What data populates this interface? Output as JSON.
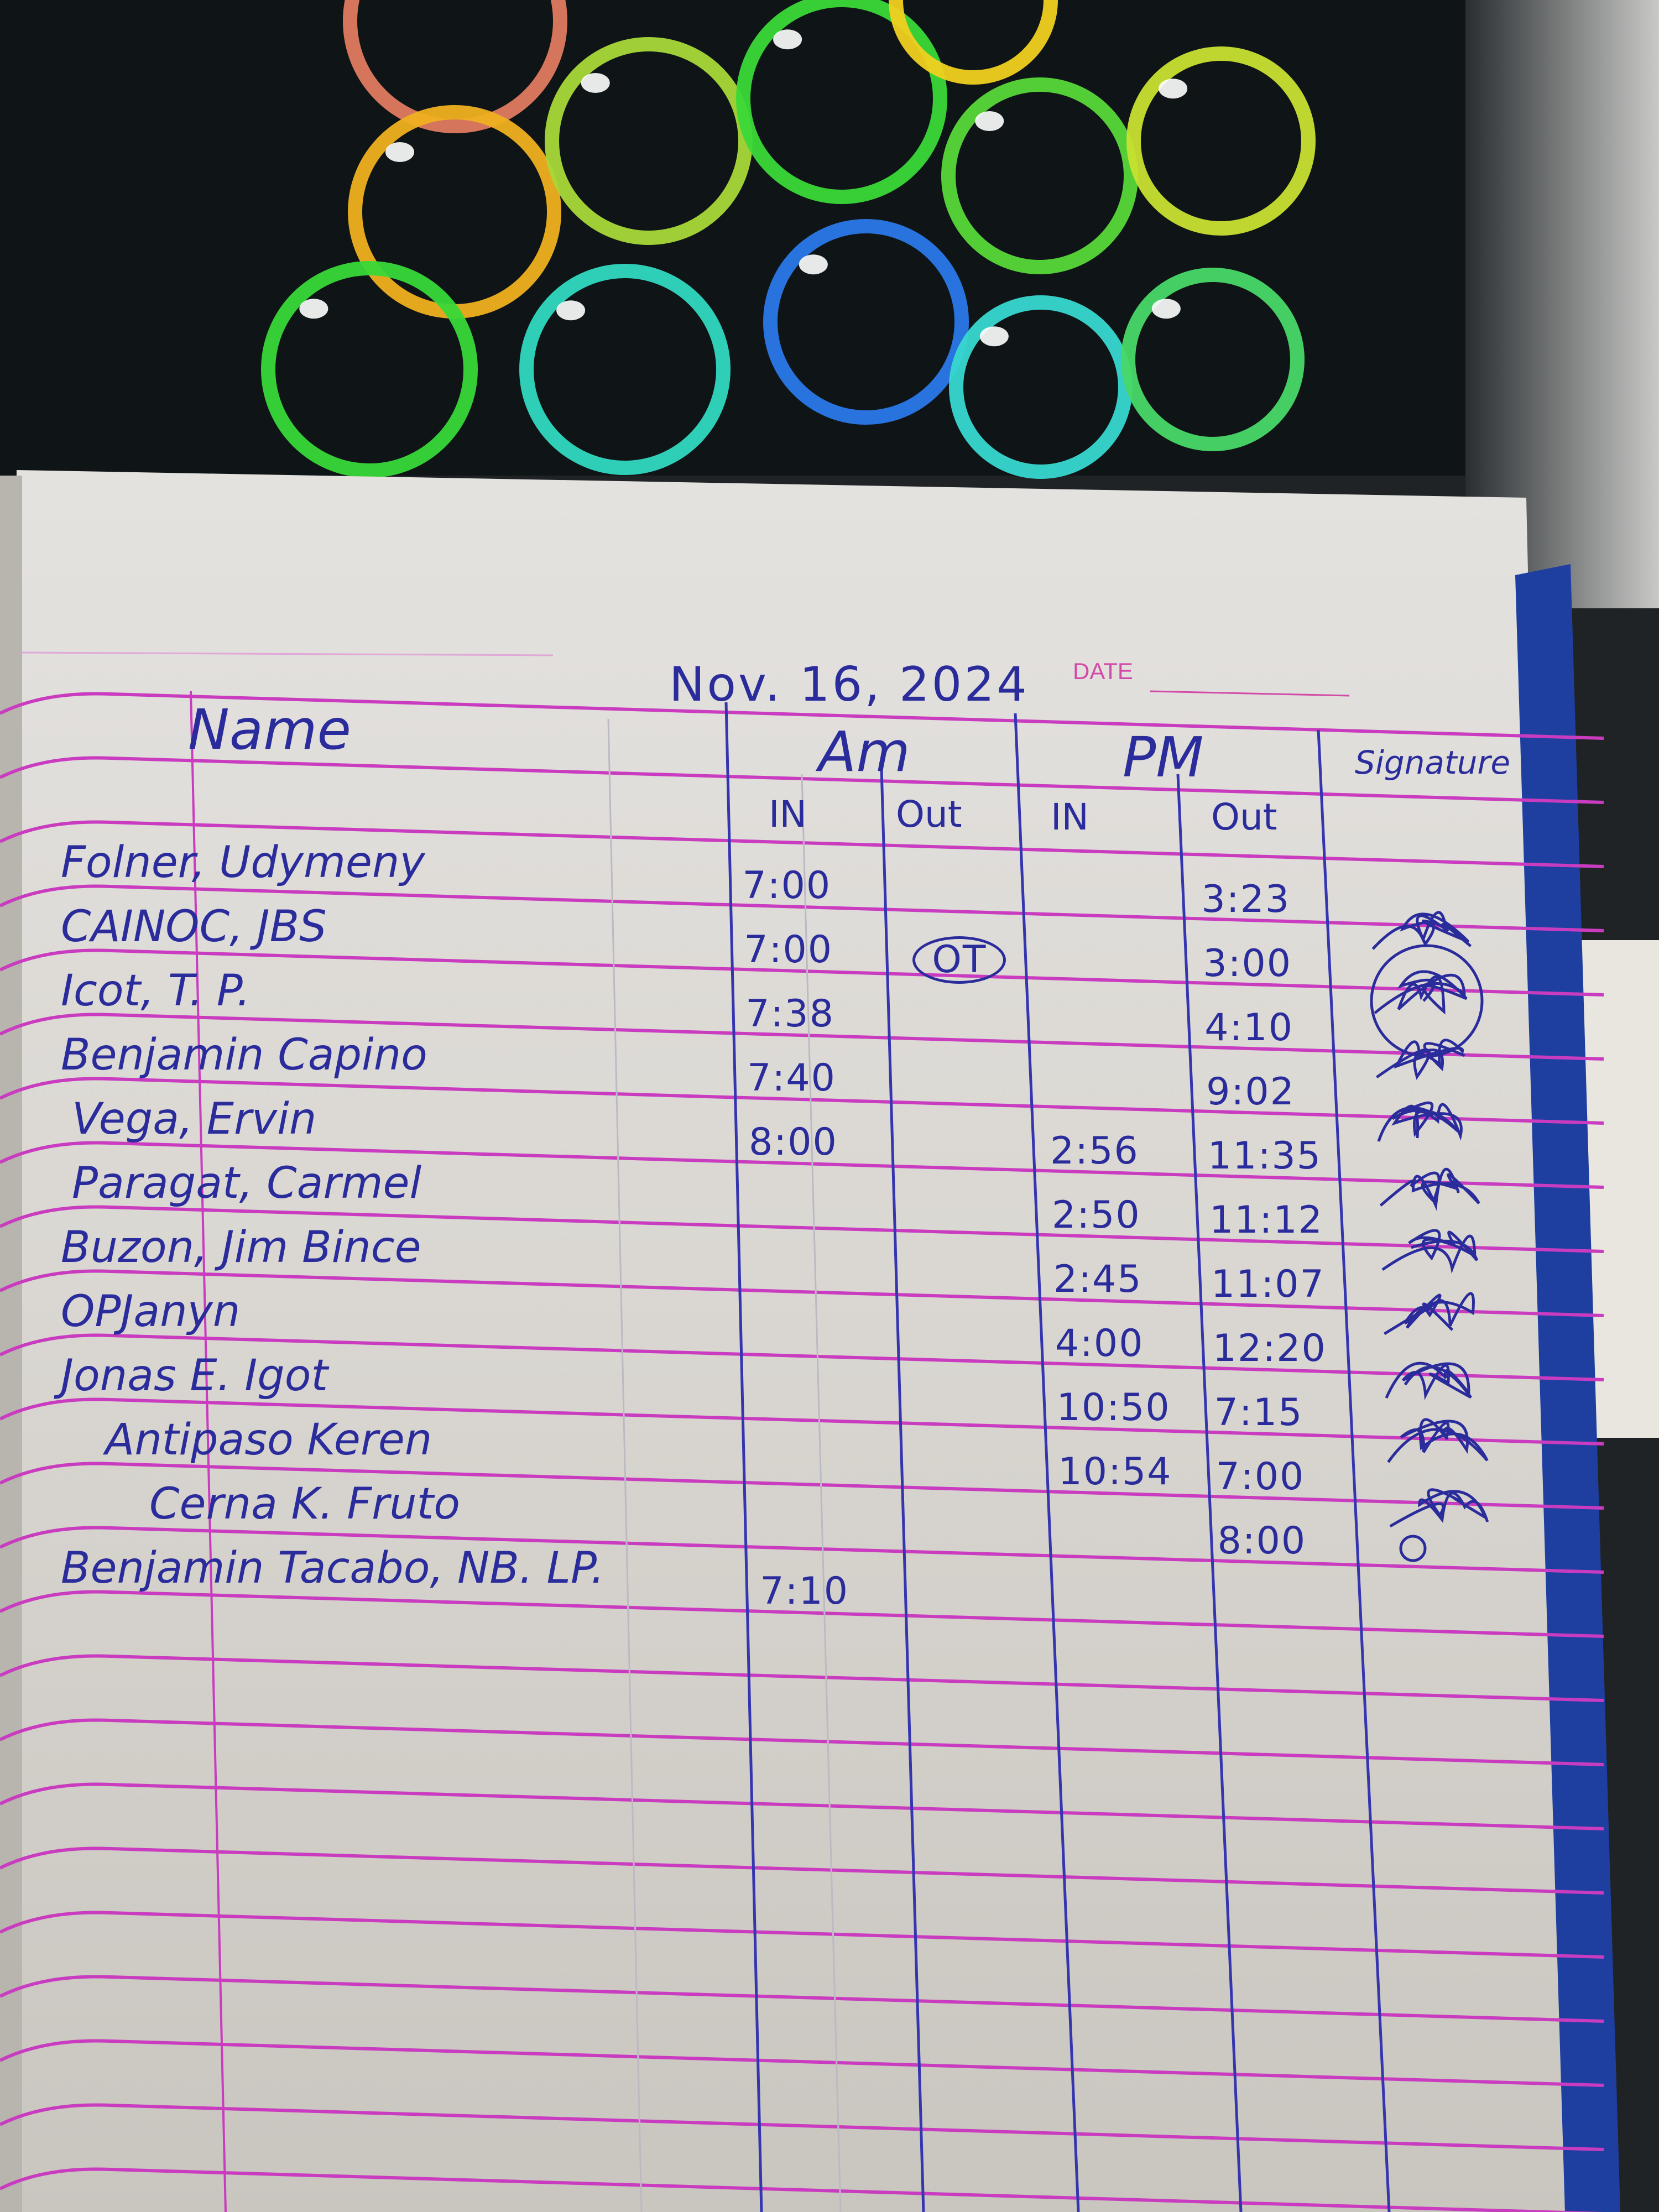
{
  "page": {
    "printed_date_label": "DATE",
    "handwritten_date": "Nov. 16, 2024"
  },
  "headers": {
    "name": "Name",
    "am": "Am",
    "pm": "PM",
    "signature": "Signature",
    "am_in": "IN",
    "am_out": "Out",
    "pm_in": "IN",
    "pm_out": "Out"
  },
  "rows": [
    {
      "name": "Folner, Udymeny",
      "am_in": "7:00",
      "am_out": "",
      "pm_in": "",
      "pm_out": "3:23"
    },
    {
      "name": "CAINOC, JBS",
      "am_in": "7:00",
      "am_out": "OT",
      "pm_in": "",
      "pm_out": "3:00"
    },
    {
      "name": "Icot, T. P.",
      "am_in": "7:38",
      "am_out": "",
      "pm_in": "",
      "pm_out": "4:10"
    },
    {
      "name": "Benjamin Capino",
      "am_in": "7:40",
      "am_out": "",
      "pm_in": "",
      "pm_out": "9:02"
    },
    {
      "name": "Vega, Ervin",
      "am_in": "8:00",
      "am_out": "",
      "pm_in": "2:56",
      "pm_out": "11:35"
    },
    {
      "name": "Paragat, Carmel",
      "am_in": "",
      "am_out": "",
      "pm_in": "2:50",
      "pm_out": "11:12"
    },
    {
      "name": "Buzon, Jim Bince",
      "am_in": "",
      "am_out": "",
      "pm_in": "2:45",
      "pm_out": "11:07"
    },
    {
      "name": "OPJanyn",
      "am_in": "",
      "am_out": "",
      "pm_in": "4:00",
      "pm_out": "12:20"
    },
    {
      "name": "Jonas E. Igot",
      "am_in": "",
      "am_out": "",
      "pm_in": "10:50",
      "pm_out": "7:15"
    },
    {
      "name": "Antipaso Keren",
      "am_in": "",
      "am_out": "",
      "pm_in": "10:54",
      "pm_out": "7:00"
    },
    {
      "name": "Cerna K. Fruto",
      "am_in": "",
      "am_out": "",
      "pm_in": "",
      "pm_out": "8:00"
    },
    {
      "name": "Benjamin Tacabo, NB. LP.",
      "am_in": "7:10",
      "am_out": "",
      "pm_in": "",
      "pm_out": ""
    }
  ],
  "colors": {
    "ink": "#2b2c9c",
    "ruled_line": "#c93cbf",
    "paper": "#dcd9d4",
    "notebook_cover": "#1e3fa0",
    "monitor": "#101417"
  }
}
